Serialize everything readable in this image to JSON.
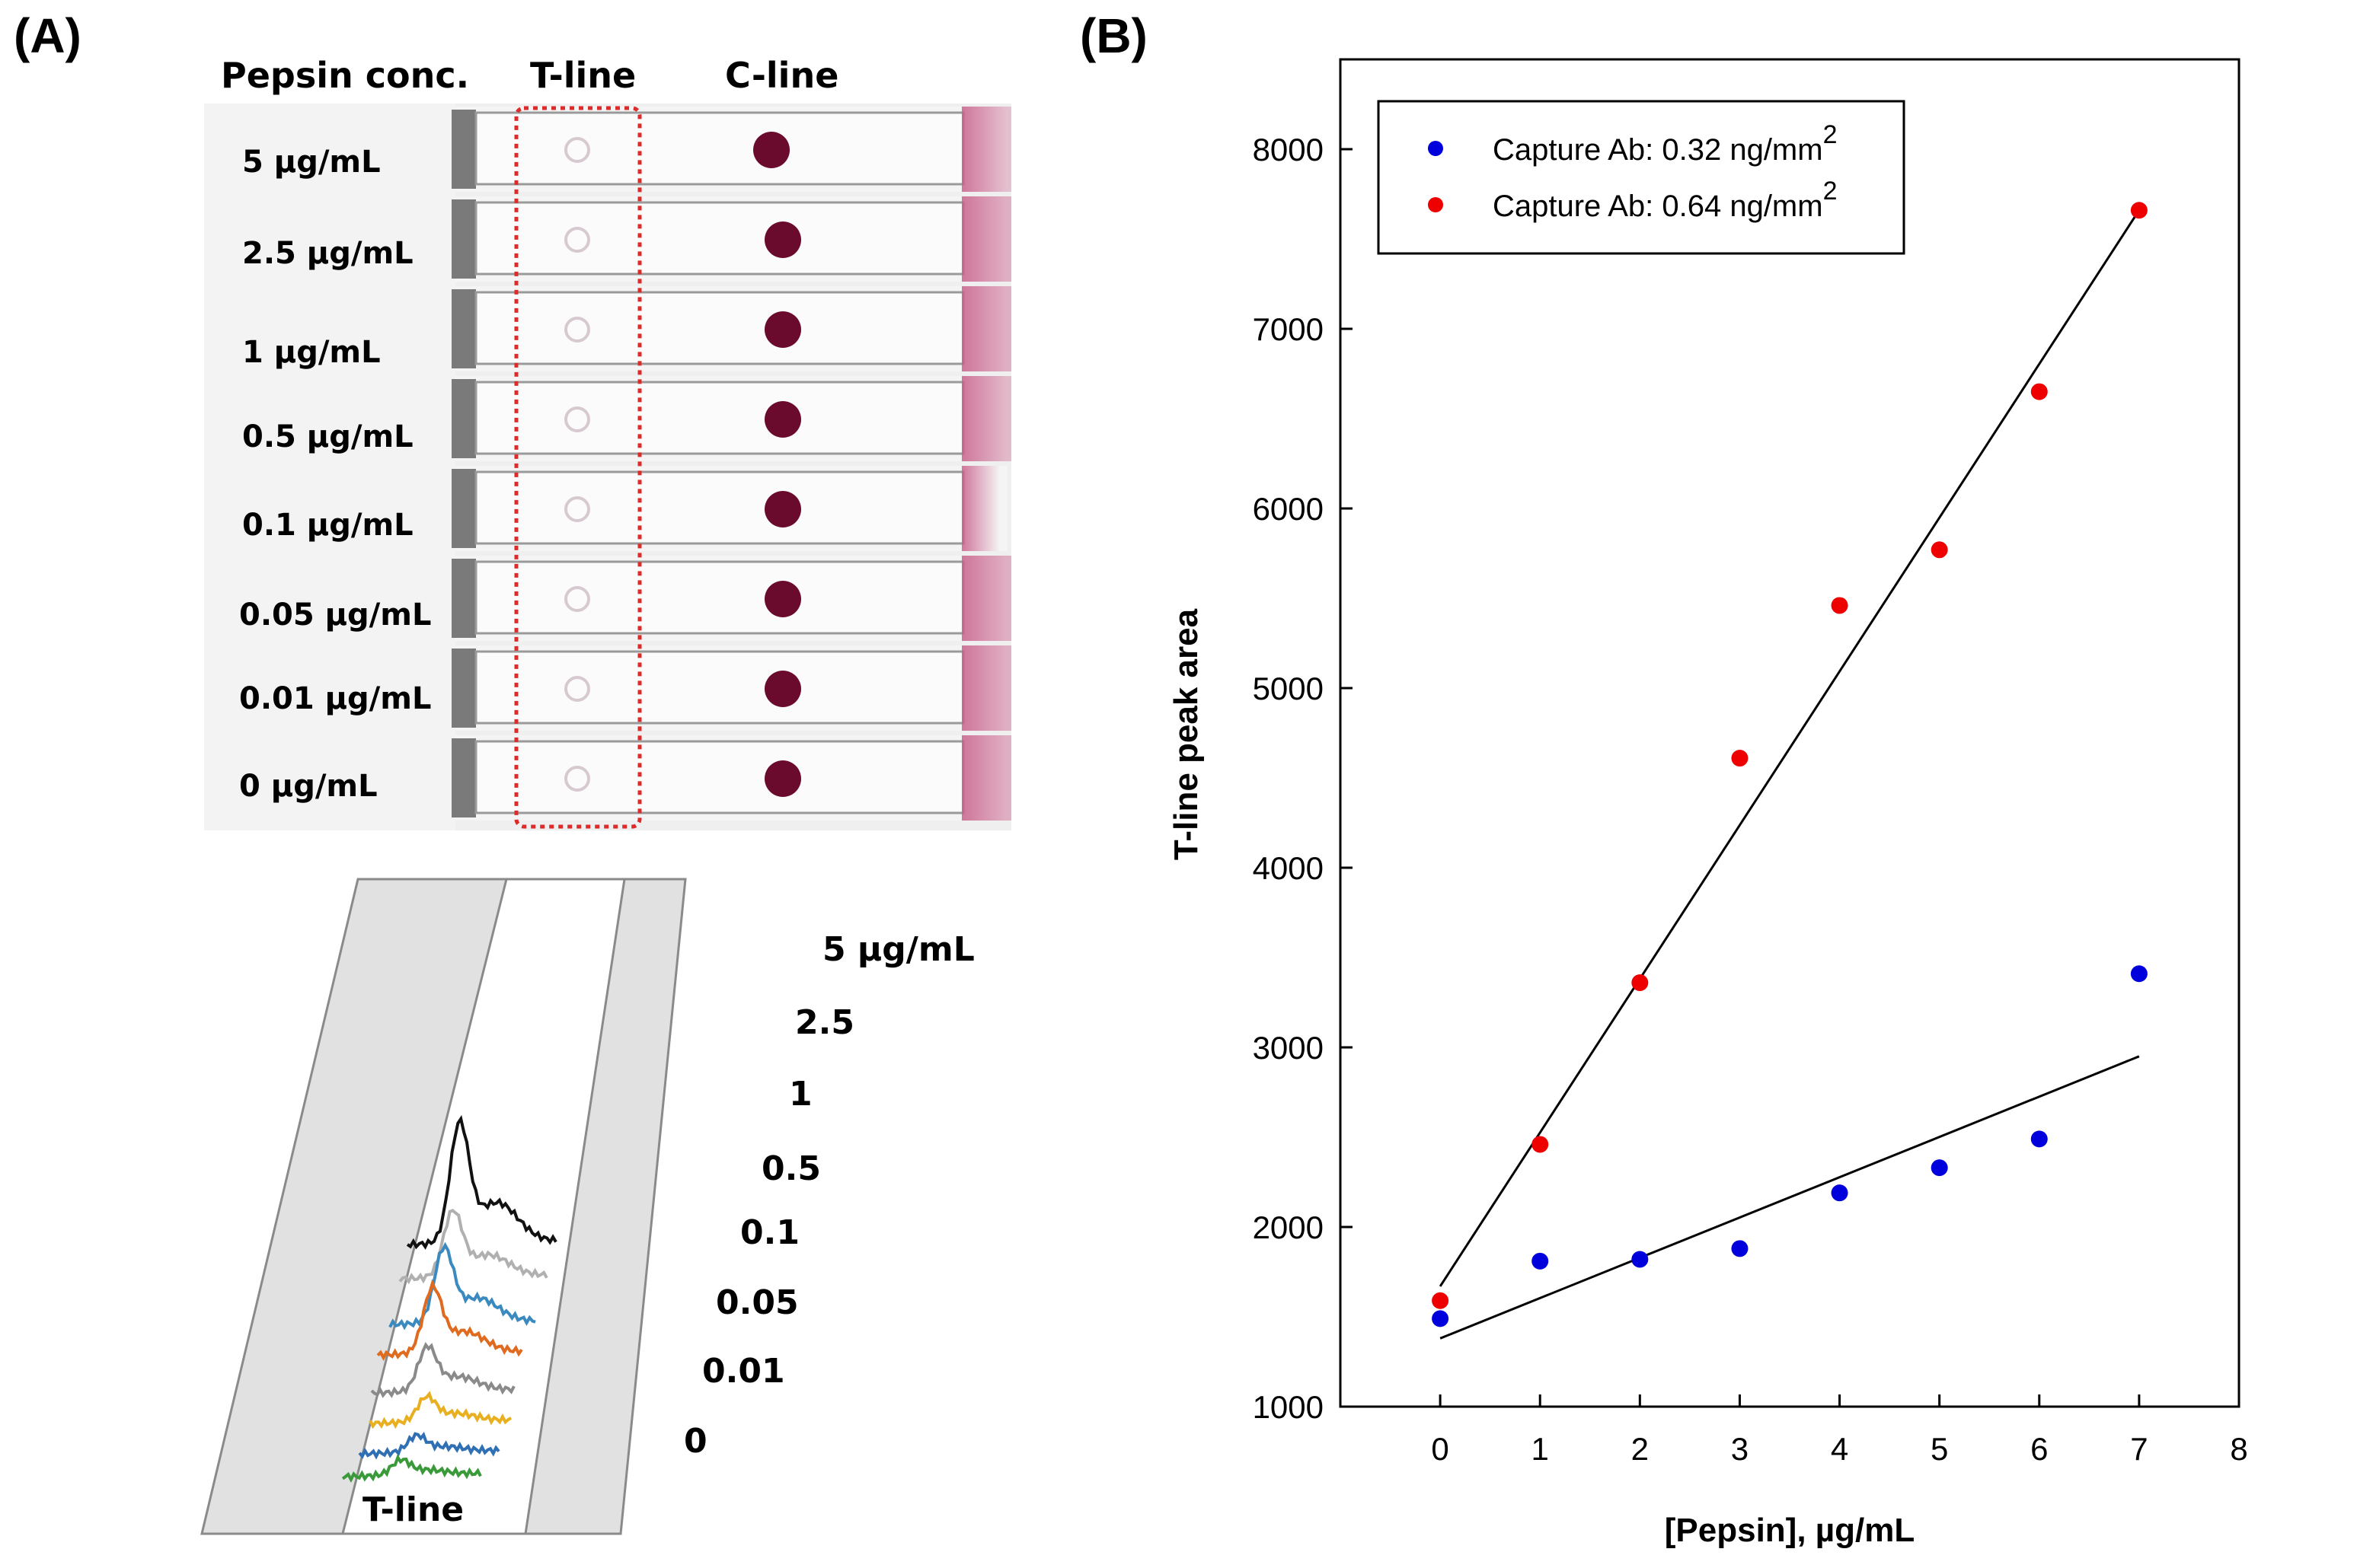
{
  "panel_a": {
    "label": "(A)",
    "headers": {
      "conc": "Pepsin conc.",
      "tline": "T-line",
      "cline": "C-line"
    },
    "strip_labels": [
      "5 µg/mL",
      "2.5 µg/mL",
      "1 µg/mL",
      "0.5 µg/mL",
      "0.1 µg/mL",
      "0.05 µg/mL",
      "0.01 µg/mL",
      "0 µg/mL"
    ],
    "profile_labels": [
      "5 µg/mL",
      "2.5",
      "1",
      "0.5",
      "0.1",
      "0.05",
      "0.01",
      "0"
    ],
    "profile_tline_label": "T-line",
    "profile_colors": [
      "#111111",
      "#b0b0b0",
      "#3a8ac0",
      "#e06a1e",
      "#8a8a8a",
      "#e8b020",
      "#2f6fb4",
      "#3a9a3a"
    ]
  },
  "panel_b": {
    "label": "(B)"
  },
  "chart_data": {
    "type": "scatter",
    "xlabel": "[Pepsin], µg/mL",
    "ylabel": "T-line peak area",
    "xlim": [
      -1,
      8
    ],
    "ylim": [
      1000,
      8500
    ],
    "xticks": [
      "0",
      "1",
      "2",
      "3",
      "4",
      "5",
      "6",
      "7",
      "8"
    ],
    "yticks": [
      "1000",
      "2000",
      "3000",
      "4000",
      "5000",
      "6000",
      "7000",
      "8000"
    ],
    "legend_position": "top-left",
    "series": [
      {
        "name": "Capture Ab: 0.32 ng/mm",
        "name_sup": "2",
        "color": "#0000dd",
        "x": [
          0,
          1,
          2,
          3,
          4,
          5,
          6,
          7
        ],
        "y": [
          1490,
          1810,
          1820,
          1880,
          2190,
          2330,
          2490,
          3410
        ],
        "fit": [
          [
            0,
            1380
          ],
          [
            7,
            2950
          ]
        ]
      },
      {
        "name": "Capture Ab: 0.64 ng/mm",
        "name_sup": "2",
        "color": "#ee0000",
        "x": [
          0,
          1,
          2,
          3,
          4,
          5,
          6,
          7
        ],
        "y": [
          1590,
          2460,
          3360,
          4610,
          5460,
          5770,
          6650,
          7660
        ],
        "fit": [
          [
            0,
            1670
          ],
          [
            7,
            7660
          ]
        ]
      }
    ]
  }
}
